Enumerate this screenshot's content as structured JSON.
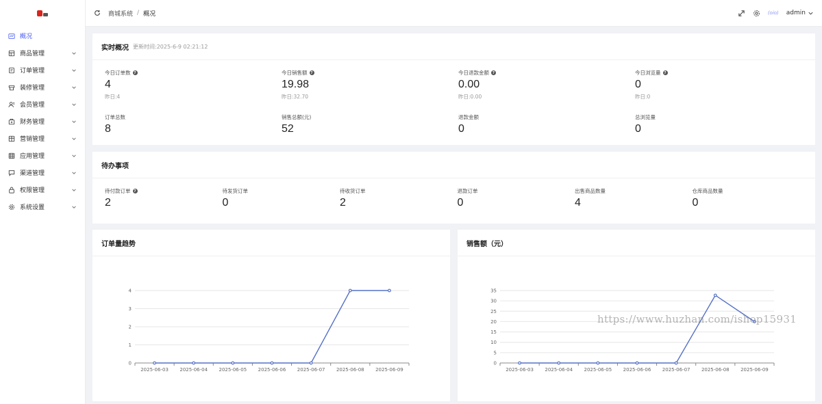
{
  "sidebar": {
    "items": [
      {
        "label": "概况",
        "icon": "dashboard-icon",
        "active": true,
        "chevron": false
      },
      {
        "label": "商品管理",
        "icon": "goods-icon",
        "chevron": true
      },
      {
        "label": "订单管理",
        "icon": "order-icon",
        "chevron": true
      },
      {
        "label": "装修管理",
        "icon": "decoration-icon",
        "chevron": true
      },
      {
        "label": "会员管理",
        "icon": "member-icon",
        "chevron": true
      },
      {
        "label": "财务管理",
        "icon": "finance-icon",
        "chevron": true
      },
      {
        "label": "营销管理",
        "icon": "marketing-icon",
        "chevron": true
      },
      {
        "label": "应用管理",
        "icon": "app-icon",
        "chevron": true
      },
      {
        "label": "渠道管理",
        "icon": "channel-icon",
        "chevron": true
      },
      {
        "label": "权限管理",
        "icon": "lock-icon",
        "chevron": true
      },
      {
        "label": "系统设置",
        "icon": "gear-icon",
        "chevron": true
      }
    ]
  },
  "header": {
    "breadcrumb": [
      "商城系统",
      "概况"
    ],
    "separator": "/",
    "user": "admin",
    "avatar_text": "(oio)"
  },
  "realtime": {
    "title": "实时概况",
    "updated": "更新时间:2025-6-9 02:21:12",
    "stats": [
      {
        "label": "今日订单数",
        "value": "4",
        "sub": "昨日:4",
        "help": true
      },
      {
        "label": "今日销售额",
        "value": "19.98",
        "sub": "昨日:32.70",
        "help": true
      },
      {
        "label": "今日退款金额",
        "value": "0.00",
        "sub": "昨日:0.00",
        "help": true
      },
      {
        "label": "今日浏览量",
        "value": "0",
        "sub": "昨日:0",
        "help": true
      }
    ],
    "totals": [
      {
        "label": "订单总数",
        "value": "8"
      },
      {
        "label": "销售总额(元)",
        "value": "52"
      },
      {
        "label": "退款金额",
        "value": "0"
      },
      {
        "label": "总浏览量",
        "value": "0"
      }
    ]
  },
  "todo": {
    "title": "待办事项",
    "items": [
      {
        "label": "待付款订单",
        "value": "2",
        "help": true
      },
      {
        "label": "待发货订单",
        "value": "0"
      },
      {
        "label": "待收货订单",
        "value": "2"
      },
      {
        "label": "退款订单",
        "value": "0"
      },
      {
        "label": "出售商品数量",
        "value": "4"
      },
      {
        "label": "仓库商品数量",
        "value": "0"
      }
    ]
  },
  "charts_titles": {
    "orders": "订单量趋势",
    "sales": "销售额（元）"
  },
  "colors": {
    "accent": "#4a5df0",
    "line": "#5470c6"
  },
  "watermark": "https://www.huzhan.com/ishop15931",
  "chart_data": [
    {
      "type": "line",
      "title": "订单量趋势",
      "categories": [
        "2025-06-03",
        "2025-06-04",
        "2025-06-05",
        "2025-06-06",
        "2025-06-07",
        "2025-06-08",
        "2025-06-09"
      ],
      "values": [
        0,
        0,
        0,
        0,
        0,
        4,
        4
      ],
      "ylim": [
        0,
        4
      ],
      "yticks": [
        0,
        1,
        2,
        3,
        4
      ],
      "grid": true
    },
    {
      "type": "line",
      "title": "销售额（元）",
      "categories": [
        "2025-06-03",
        "2025-06-04",
        "2025-06-05",
        "2025-06-06",
        "2025-06-07",
        "2025-06-08",
        "2025-06-09"
      ],
      "values": [
        0,
        0,
        0,
        0,
        0,
        32.7,
        19.98
      ],
      "ylim": [
        0,
        35
      ],
      "yticks": [
        0,
        5,
        10,
        15,
        20,
        25,
        30,
        35
      ],
      "grid": true
    }
  ]
}
